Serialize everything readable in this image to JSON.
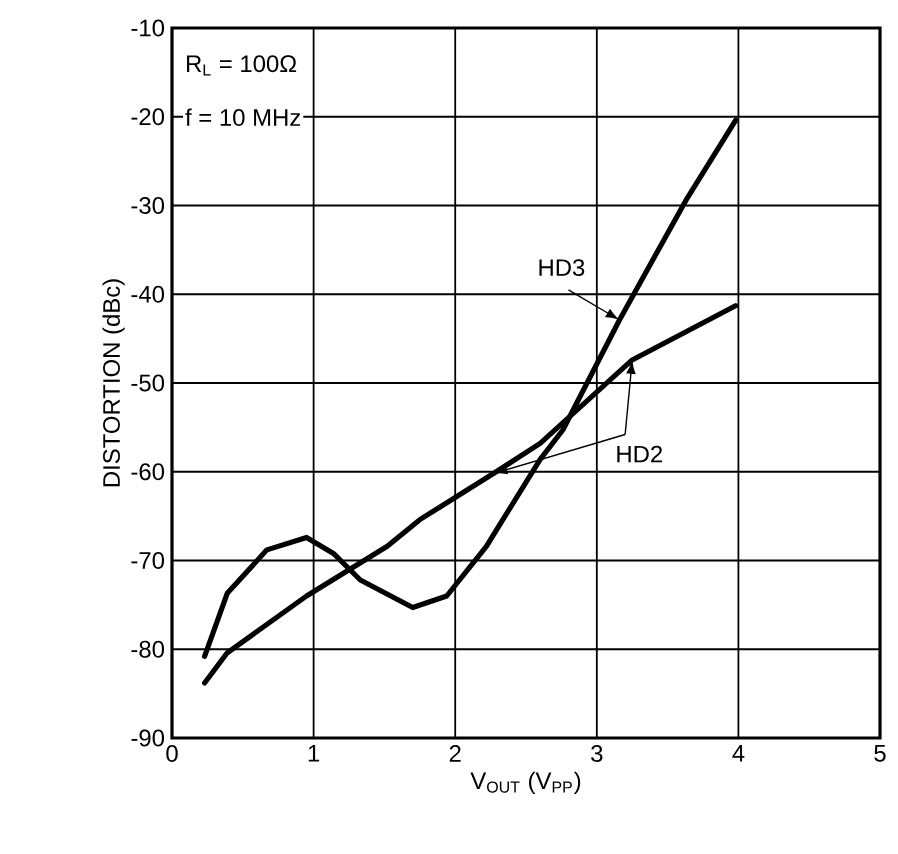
{
  "chart_data": {
    "type": "line",
    "xlabel": "V$_{OUT}$ (V$_{PP}$)",
    "ylabel": "DISTORTION (dBc)",
    "xlim": [
      0,
      5
    ],
    "xticks": [
      0,
      1,
      2,
      3,
      4,
      5
    ],
    "ylim": [
      -90,
      -10
    ],
    "yticks": [
      -90,
      -80,
      -70,
      -60,
      -50,
      -40,
      -30,
      -20,
      -10
    ],
    "grid": true,
    "annotations": [
      "R$_{L}$ = 100Ω",
      "f = 10 MHz"
    ],
    "series": [
      {
        "name": "HD3",
        "color": "#000000",
        "x": [
          0.23,
          0.39,
          0.67,
          0.95,
          1.14,
          1.33,
          1.7,
          1.94,
          2.22,
          2.6,
          2.76,
          3.16,
          3.4,
          3.63,
          3.98
        ],
        "values": [
          -80.8,
          -73.7,
          -68.8,
          -67.4,
          -69.2,
          -72.2,
          -75.3,
          -74.0,
          -68.4,
          -58.6,
          -55.3,
          -42.9,
          -36,
          -29.4,
          -20.4
        ]
      },
      {
        "name": "HD2",
        "color": "#000000",
        "x": [
          0.23,
          0.39,
          0.95,
          1.52,
          1.75,
          2.27,
          2.6,
          3.25,
          3.98
        ],
        "values": [
          -83.8,
          -80.4,
          -74,
          -68.4,
          -65.4,
          -60.2,
          -56.8,
          -47.4,
          -41.3
        ]
      }
    ]
  }
}
